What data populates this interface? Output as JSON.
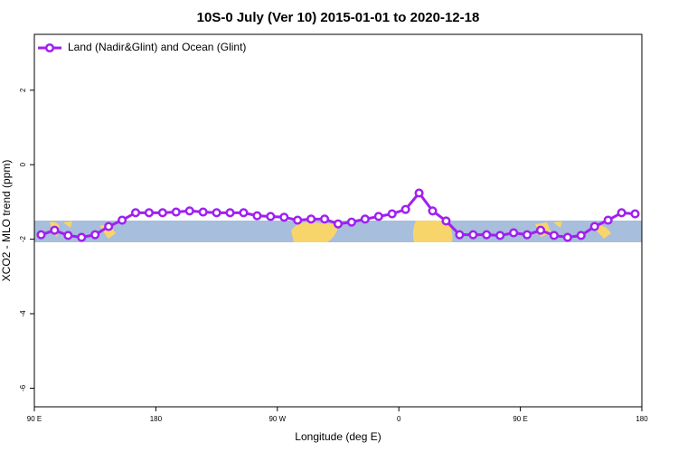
{
  "chart_data": {
    "type": "line",
    "title": "10S-0 July (Ver 10)   2015-01-01 to 2020-12-18",
    "x_label": "Longitude (deg E)",
    "y_label": "XCO2 - MLO trend (ppm)",
    "x": [
      95,
      105,
      115,
      125,
      135,
      145,
      155,
      165,
      175,
      185,
      195,
      205,
      215,
      225,
      235,
      245,
      255,
      265,
      275,
      285,
      295,
      305,
      315,
      325,
      335,
      345,
      355,
      365,
      375,
      385,
      395,
      405,
      415,
      425,
      435,
      445,
      455,
      465,
      475,
      485,
      495,
      505,
      515,
      525,
      535
    ],
    "series": [
      {
        "name": "Land (Nadir&Glint) and Ocean (Glint)",
        "color": "#a020f0",
        "values": [
          -1.88,
          -1.76,
          -1.9,
          -1.95,
          -1.88,
          -1.66,
          -1.49,
          -1.29,
          -1.29,
          -1.29,
          -1.27,
          -1.24,
          -1.27,
          -1.29,
          -1.29,
          -1.29,
          -1.37,
          -1.39,
          -1.41,
          -1.49,
          -1.46,
          -1.46,
          -1.59,
          -1.54,
          -1.46,
          -1.39,
          -1.32,
          -1.2,
          -0.76,
          -1.24,
          -1.51,
          -1.88,
          -1.88,
          -1.88,
          -1.9,
          -1.83,
          -1.88,
          -1.76,
          -1.9,
          -1.95,
          -1.9,
          -1.66,
          -1.49,
          -1.29,
          -1.32
        ]
      }
    ],
    "xlim": [
      90,
      540
    ],
    "xticks": [
      {
        "value": 90,
        "label": "90 E"
      },
      180,
      {
        "value": 270,
        "label": "90 W"
      },
      {
        "value": 360,
        "label": "0"
      },
      {
        "value": 450,
        "label": "90 E"
      },
      {
        "value": 540,
        "label": "180"
      }
    ],
    "ylim": [
      -6.5,
      3.5
    ],
    "yticks": [
      -6,
      -4,
      -2,
      0,
      2
    ],
    "legend": "upper left"
  }
}
